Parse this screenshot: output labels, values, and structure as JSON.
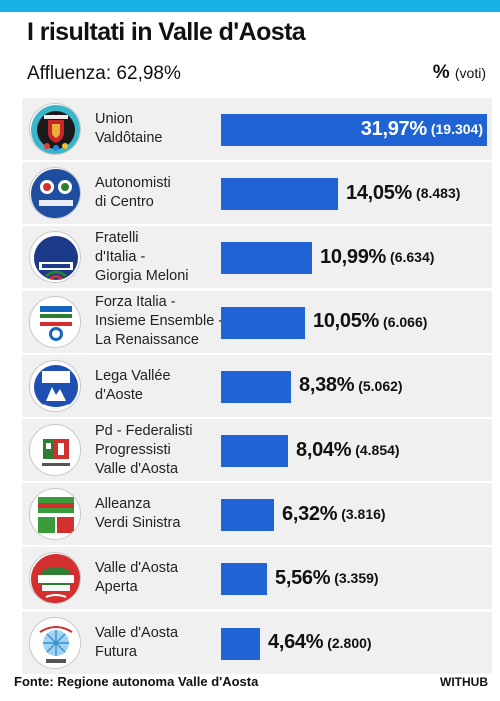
{
  "header": {
    "title": "I risultati in Valle d'Aosta",
    "turnout": "Affluenza: 62,98%",
    "unit_symbol": "%",
    "unit_label": "(voti)"
  },
  "footer": {
    "source": "Fonte: Regione autonoma Valle d'Aosta",
    "brand": "WITHUB"
  },
  "colors": {
    "bar": "#1f63d4",
    "accent_bar": "#1ab0e8",
    "row_background": "#f0f0f0"
  },
  "chart_data": {
    "type": "bar",
    "orientation": "horizontal",
    "title": "I risultati in Valle d'Aosta",
    "unit": "% (voti)",
    "categories": [
      "Union Valdôtaine",
      "Autonomisti di Centro",
      "Fratelli d'Italia - Giorgia Meloni",
      "Forza Italia - Insieme Ensemble - La Renaissance",
      "Lega Vallée d'Aoste",
      "Pd - Federalisti Progressisti Valle d'Aosta",
      "Alleanza Verdi Sinistra",
      "Valle d'Aosta Aperta",
      "Valle d'Aosta Futura"
    ],
    "values": [
      31.97,
      14.05,
      10.99,
      10.05,
      8.38,
      8.04,
      6.32,
      5.56,
      4.64
    ],
    "votes": [
      19304,
      8483,
      6634,
      6066,
      5062,
      4854,
      3816,
      3359,
      2800
    ],
    "xlim": [
      0,
      31.97
    ],
    "rows": [
      {
        "label_lines": [
          "Union",
          "Valdôtaine"
        ],
        "pct_label": "31,97%",
        "votes_label": "(19.304)",
        "logo": "union-valdotaine-logo"
      },
      {
        "label_lines": [
          "Autonomisti",
          "di Centro"
        ],
        "pct_label": "14,05%",
        "votes_label": "(8.483)",
        "logo": "centro-logo"
      },
      {
        "label_lines": [
          "Fratelli",
          "d'Italia -",
          "Giorgia Meloni"
        ],
        "pct_label": "10,99%",
        "votes_label": "(6.634)",
        "logo": "fratelli-italia-logo"
      },
      {
        "label_lines": [
          "Forza Italia -",
          "Insieme Ensemble -",
          "La Renaissance"
        ],
        "pct_label": "10,05%",
        "votes_label": "(6.066)",
        "logo": "forza-italia-logo"
      },
      {
        "label_lines": [
          "Lega Vallée",
          "d'Aoste"
        ],
        "pct_label": "8,38%",
        "votes_label": "(5.062)",
        "logo": "lega-logo"
      },
      {
        "label_lines": [
          "Pd - Federalisti",
          "Progressisti",
          "Valle d'Aosta"
        ],
        "pct_label": "8,04%",
        "votes_label": "(4.854)",
        "logo": "pd-logo"
      },
      {
        "label_lines": [
          "Alleanza",
          "Verdi Sinistra"
        ],
        "pct_label": "6,32%",
        "votes_label": "(3.816)",
        "logo": "avs-logo"
      },
      {
        "label_lines": [
          "Valle d'Aosta",
          "Aperta"
        ],
        "pct_label": "5,56%",
        "votes_label": "(3.359)",
        "logo": "vda-aperta-logo"
      },
      {
        "label_lines": [
          "Valle d'Aosta",
          "Futura"
        ],
        "pct_label": "4,64%",
        "votes_label": "(2.800)",
        "logo": "vda-futura-logo"
      }
    ]
  }
}
